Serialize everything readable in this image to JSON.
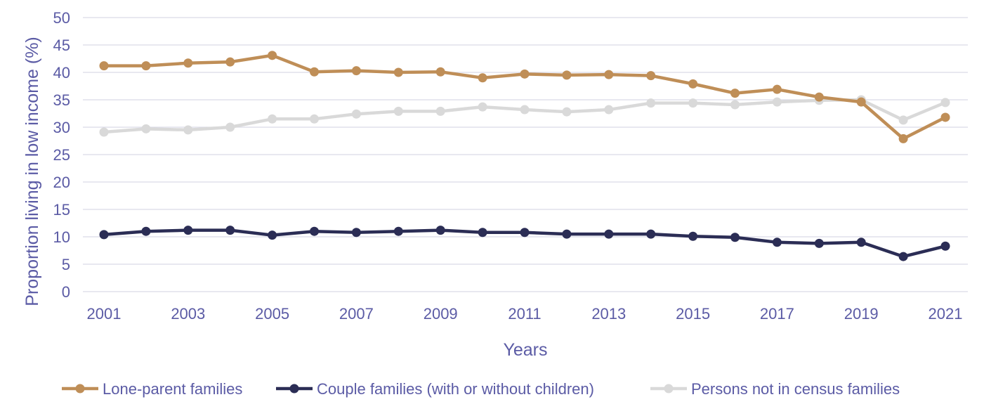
{
  "chart_data": {
    "type": "line",
    "title": "",
    "xlabel": "Years",
    "ylabel": "Proportion living in low income (%)",
    "ylim": [
      0,
      50
    ],
    "yticks": [
      0,
      5,
      10,
      15,
      20,
      25,
      30,
      35,
      40,
      45,
      50
    ],
    "x": [
      2001,
      2002,
      2003,
      2004,
      2005,
      2006,
      2007,
      2008,
      2009,
      2010,
      2011,
      2012,
      2013,
      2014,
      2015,
      2016,
      2017,
      2018,
      2019,
      2020,
      2021
    ],
    "xtick_labels": [
      "2001",
      "2003",
      "2005",
      "2007",
      "2009",
      "2011",
      "2013",
      "2015",
      "2017",
      "2019",
      "2021"
    ],
    "grid": "horizontal",
    "legend_position": "bottom",
    "series": [
      {
        "name": "Lone-parent families",
        "color": "#BF8E57",
        "values": [
          41.2,
          41.2,
          41.7,
          41.9,
          43.1,
          40.1,
          40.3,
          40.0,
          40.1,
          39.0,
          39.7,
          39.5,
          39.6,
          39.4,
          37.9,
          36.2,
          36.9,
          35.5,
          34.6,
          27.9,
          31.8
        ]
      },
      {
        "name": "Couple families (with or without children)",
        "color": "#2B2D55",
        "values": [
          10.4,
          11.0,
          11.2,
          11.2,
          10.3,
          11.0,
          10.8,
          11.0,
          11.2,
          10.8,
          10.8,
          10.5,
          10.5,
          10.5,
          10.1,
          9.9,
          9.0,
          8.8,
          9.0,
          6.4,
          8.3
        ]
      },
      {
        "name": "Persons not in census families",
        "color": "#D9D9D9",
        "values": [
          29.1,
          29.7,
          29.5,
          30.0,
          31.5,
          31.5,
          32.4,
          32.9,
          32.9,
          33.7,
          33.2,
          32.8,
          33.2,
          34.4,
          34.4,
          34.1,
          34.6,
          34.9,
          35.0,
          31.3,
          34.5
        ]
      }
    ]
  }
}
